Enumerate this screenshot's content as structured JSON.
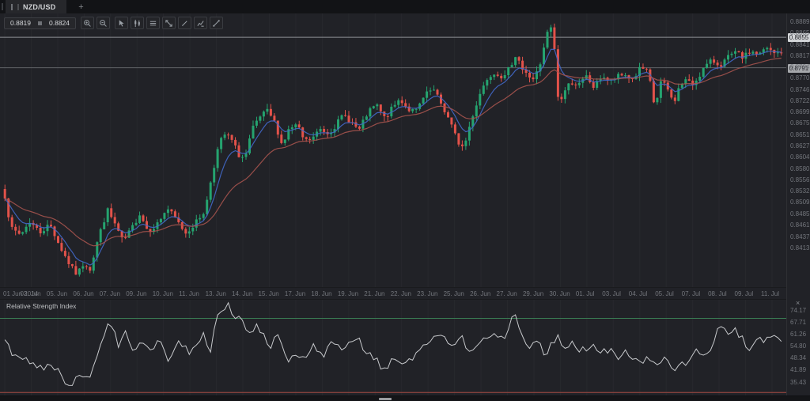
{
  "window": {
    "app": "forex chart workspace"
  },
  "tabs": {
    "active": "NZD/USD",
    "new_tab": "+"
  },
  "quote_panel": {
    "bid": "0.8819",
    "ask": "0.8824"
  },
  "toolbar": {
    "buttons": [
      "zoom-in",
      "zoom-out",
      "cursor-tool",
      "chart-type-candles",
      "chart-objects-list",
      "fullscreen",
      "draw-pencil",
      "edit-chart",
      "trend-line"
    ]
  },
  "time_axis": {
    "labels": [
      "01 Jun 2014",
      "03. Jun",
      "05. Jun",
      "06. Jun",
      "07. Jun",
      "09. Jun",
      "10. Jun",
      "11. Jun",
      "13. Jun",
      "14. Jun",
      "15. Jun",
      "17. Jun",
      "18. Jun",
      "19. Jun",
      "21. Jun",
      "22. Jun",
      "23. Jun",
      "25. Jun",
      "26. Jun",
      "27. Jun",
      "29. Jun",
      "30. Jun",
      "01. Jul",
      "03. Jul",
      "04. Jul",
      "05. Jul",
      "07. Jul",
      "08. Jul",
      "09. Jul",
      "11. Jul"
    ]
  },
  "rsi": {
    "title": "Relative Strength Index",
    "close_label": "×",
    "ticks": [
      74.17,
      67.71,
      61.26,
      54.8,
      48.34,
      41.89,
      35.43
    ]
  },
  "chart_data": {
    "type": "candlestick",
    "instrument": "NZD/USD",
    "date_range": [
      "01 Jun 2014",
      "11 Jul 2014"
    ],
    "bid": 0.8819,
    "ask": 0.8824,
    "price_axis_ticks": [
      0.8889,
      0.8865,
      0.8841,
      0.8817,
      0.8794,
      0.877,
      0.8746,
      0.8722,
      0.8699,
      0.8675,
      0.8651,
      0.8627,
      0.8604,
      0.858,
      0.8556,
      0.8532,
      0.8509,
      0.8485,
      0.8461,
      0.8437,
      0.8413
    ],
    "markers": [
      {
        "label": "0.8855",
        "value": 0.8855,
        "line_color": "#8e9196",
        "badge_bg": "#d4d6d9",
        "badge_fg": "#212227"
      },
      {
        "label": "0.8791",
        "value": 0.8791,
        "line_color": "#5f6267",
        "badge_bg": "#a6a8ac",
        "badge_fg": "#212227"
      }
    ],
    "colors": {
      "up": "#25a36f",
      "down": "#e2524a",
      "rsi_line": "#c7c9cc",
      "overbought": "#3a7d54",
      "oversold": "#84403c"
    },
    "indicators": [
      {
        "name": "fast moving average",
        "color": "#4168c9",
        "period": 7
      },
      {
        "name": "slow moving average",
        "color": "#a5534e",
        "period": 24
      }
    ],
    "rsi_levels": {
      "overbought": 70,
      "oversold": 30
    },
    "price_path": [
      [
        0.0,
        0.8522
      ],
      [
        0.008,
        0.8452
      ],
      [
        0.02,
        0.844
      ],
      [
        0.032,
        0.8468
      ],
      [
        0.045,
        0.8445
      ],
      [
        0.058,
        0.8462
      ],
      [
        0.072,
        0.8412
      ],
      [
        0.085,
        0.8372
      ],
      [
        0.093,
        0.8356
      ],
      [
        0.102,
        0.8382
      ],
      [
        0.11,
        0.8368
      ],
      [
        0.12,
        0.8432
      ],
      [
        0.132,
        0.8492
      ],
      [
        0.143,
        0.8458
      ],
      [
        0.152,
        0.8424
      ],
      [
        0.163,
        0.8452
      ],
      [
        0.174,
        0.8486
      ],
      [
        0.184,
        0.8448
      ],
      [
        0.196,
        0.8462
      ],
      [
        0.209,
        0.8496
      ],
      [
        0.221,
        0.847
      ],
      [
        0.233,
        0.8444
      ],
      [
        0.246,
        0.8466
      ],
      [
        0.258,
        0.8492
      ],
      [
        0.266,
        0.8562
      ],
      [
        0.276,
        0.8632
      ],
      [
        0.284,
        0.8652
      ],
      [
        0.293,
        0.8636
      ],
      [
        0.301,
        0.8608
      ],
      [
        0.309,
        0.86
      ],
      [
        0.319,
        0.8662
      ],
      [
        0.329,
        0.8688
      ],
      [
        0.339,
        0.87
      ],
      [
        0.349,
        0.867
      ],
      [
        0.357,
        0.8628
      ],
      [
        0.366,
        0.8662
      ],
      [
        0.376,
        0.867
      ],
      [
        0.386,
        0.8636
      ],
      [
        0.396,
        0.8642
      ],
      [
        0.406,
        0.8662
      ],
      [
        0.416,
        0.8654
      ],
      [
        0.426,
        0.867
      ],
      [
        0.436,
        0.8692
      ],
      [
        0.446,
        0.8678
      ],
      [
        0.456,
        0.8658
      ],
      [
        0.466,
        0.8692
      ],
      [
        0.478,
        0.8714
      ],
      [
        0.489,
        0.8684
      ],
      [
        0.499,
        0.8706
      ],
      [
        0.509,
        0.8726
      ],
      [
        0.519,
        0.8704
      ],
      [
        0.529,
        0.8698
      ],
      [
        0.541,
        0.8732
      ],
      [
        0.551,
        0.8746
      ],
      [
        0.561,
        0.8718
      ],
      [
        0.573,
        0.8678
      ],
      [
        0.583,
        0.8636
      ],
      [
        0.591,
        0.8622
      ],
      [
        0.601,
        0.8684
      ],
      [
        0.613,
        0.8742
      ],
      [
        0.623,
        0.8776
      ],
      [
        0.633,
        0.8782
      ],
      [
        0.643,
        0.8768
      ],
      [
        0.653,
        0.8802
      ],
      [
        0.659,
        0.8822
      ],
      [
        0.666,
        0.8788
      ],
      [
        0.673,
        0.8774
      ],
      [
        0.681,
        0.8768
      ],
      [
        0.689,
        0.8792
      ],
      [
        0.696,
        0.8844
      ],
      [
        0.701,
        0.8886
      ],
      [
        0.707,
        0.8848
      ],
      [
        0.713,
        0.8714
      ],
      [
        0.721,
        0.8742
      ],
      [
        0.729,
        0.8762
      ],
      [
        0.739,
        0.8754
      ],
      [
        0.749,
        0.8772
      ],
      [
        0.759,
        0.8748
      ],
      [
        0.769,
        0.8776
      ],
      [
        0.779,
        0.876
      ],
      [
        0.789,
        0.8772
      ],
      [
        0.799,
        0.8776
      ],
      [
        0.809,
        0.8766
      ],
      [
        0.819,
        0.8792
      ],
      [
        0.829,
        0.8778
      ],
      [
        0.837,
        0.8706
      ],
      [
        0.845,
        0.8762
      ],
      [
        0.853,
        0.8748
      ],
      [
        0.861,
        0.8716
      ],
      [
        0.869,
        0.8752
      ],
      [
        0.877,
        0.8766
      ],
      [
        0.885,
        0.8754
      ],
      [
        0.893,
        0.8772
      ],
      [
        0.901,
        0.8792
      ],
      [
        0.911,
        0.8806
      ],
      [
        0.921,
        0.8796
      ],
      [
        0.931,
        0.8812
      ],
      [
        0.941,
        0.8822
      ],
      [
        0.951,
        0.8812
      ],
      [
        0.961,
        0.8826
      ],
      [
        0.971,
        0.8818
      ],
      [
        0.981,
        0.8832
      ],
      [
        0.991,
        0.882
      ],
      [
        1.0,
        0.8824
      ]
    ],
    "rsi_path": [
      [
        0.0,
        60
      ],
      [
        0.01,
        50
      ],
      [
        0.03,
        47
      ],
      [
        0.05,
        44
      ],
      [
        0.06,
        46
      ],
      [
        0.075,
        37
      ],
      [
        0.085,
        35
      ],
      [
        0.095,
        40
      ],
      [
        0.103,
        36
      ],
      [
        0.112,
        42
      ],
      [
        0.125,
        58
      ],
      [
        0.135,
        70
      ],
      [
        0.146,
        55
      ],
      [
        0.156,
        62
      ],
      [
        0.166,
        50
      ],
      [
        0.176,
        58
      ],
      [
        0.19,
        54
      ],
      [
        0.201,
        57
      ],
      [
        0.211,
        48
      ],
      [
        0.226,
        57
      ],
      [
        0.236,
        52
      ],
      [
        0.246,
        55
      ],
      [
        0.256,
        63
      ],
      [
        0.264,
        52
      ],
      [
        0.276,
        74
      ],
      [
        0.286,
        78
      ],
      [
        0.296,
        68
      ],
      [
        0.302,
        72
      ],
      [
        0.316,
        62
      ],
      [
        0.326,
        67
      ],
      [
        0.341,
        54
      ],
      [
        0.351,
        60
      ],
      [
        0.366,
        45
      ],
      [
        0.376,
        52
      ],
      [
        0.386,
        48
      ],
      [
        0.396,
        55
      ],
      [
        0.411,
        50
      ],
      [
        0.421,
        58
      ],
      [
        0.436,
        52
      ],
      [
        0.451,
        60
      ],
      [
        0.461,
        55
      ],
      [
        0.476,
        48
      ],
      [
        0.491,
        42
      ],
      [
        0.501,
        50
      ],
      [
        0.516,
        45
      ],
      [
        0.531,
        52
      ],
      [
        0.546,
        58
      ],
      [
        0.561,
        63
      ],
      [
        0.576,
        55
      ],
      [
        0.586,
        62
      ],
      [
        0.601,
        50
      ],
      [
        0.611,
        57
      ],
      [
        0.626,
        62
      ],
      [
        0.641,
        58
      ],
      [
        0.656,
        72
      ],
      [
        0.666,
        60
      ],
      [
        0.676,
        55
      ],
      [
        0.686,
        58
      ],
      [
        0.696,
        50
      ],
      [
        0.711,
        60
      ],
      [
        0.721,
        55
      ],
      [
        0.731,
        58
      ],
      [
        0.741,
        52
      ],
      [
        0.756,
        57
      ],
      [
        0.766,
        50
      ],
      [
        0.781,
        55
      ],
      [
        0.791,
        48
      ],
      [
        0.801,
        52
      ],
      [
        0.816,
        45
      ],
      [
        0.826,
        50
      ],
      [
        0.841,
        44
      ],
      [
        0.851,
        48
      ],
      [
        0.866,
        42
      ],
      [
        0.876,
        46
      ],
      [
        0.891,
        52
      ],
      [
        0.901,
        48
      ],
      [
        0.911,
        55
      ],
      [
        0.921,
        68
      ],
      [
        0.931,
        60
      ],
      [
        0.941,
        63
      ],
      [
        0.951,
        58
      ],
      [
        0.961,
        52
      ],
      [
        0.971,
        60
      ],
      [
        0.976,
        55
      ],
      [
        0.986,
        62
      ],
      [
        1.0,
        58
      ]
    ],
    "render": {
      "candles": 220,
      "seed": 7,
      "noise": 0.0012,
      "wick": 0.0011,
      "price_min": 0.833,
      "price_max": 0.8905,
      "rsi_min": 28,
      "rsi_max": 80,
      "rsi_noise": 4.5
    }
  }
}
